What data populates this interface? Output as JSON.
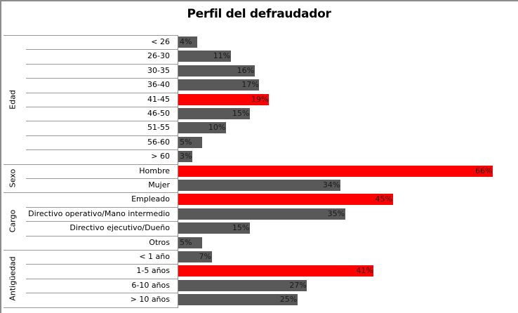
{
  "chart_data": {
    "type": "bar",
    "orientation": "horizontal",
    "title": "Perfil del defraudador",
    "xlabel": "",
    "ylabel": "",
    "grid": false,
    "legend": null,
    "colors": {
      "default": "#595959",
      "highlight": "#ff0000"
    },
    "groups": [
      {
        "name": "Edad",
        "categories": [
          "< 26",
          "26-30",
          "30-35",
          "36-40",
          "41-45",
          "46-50",
          "51-55",
          "56-60",
          "> 60"
        ],
        "values": [
          4,
          11,
          16,
          17,
          19,
          15,
          10,
          5,
          3
        ],
        "highlight": [
          false,
          false,
          false,
          false,
          true,
          false,
          false,
          false,
          false
        ]
      },
      {
        "name": "Sexo",
        "categories": [
          "Hombre",
          "Mujer"
        ],
        "values": [
          66,
          34
        ],
        "highlight": [
          true,
          false
        ]
      },
      {
        "name": "Cargo",
        "categories": [
          "Empleado",
          "Directivo operativo/Mano intermedio",
          "Directivo ejecutivo/Dueño",
          "Otros"
        ],
        "values": [
          45,
          35,
          15,
          5
        ],
        "highlight": [
          true,
          false,
          false,
          false
        ]
      },
      {
        "name": "Antigüedad",
        "categories": [
          "< 1 año",
          "1-5 años",
          "6-10 años",
          "> 10 años"
        ],
        "values": [
          7,
          41,
          27,
          25
        ],
        "highlight": [
          false,
          true,
          false,
          false
        ]
      }
    ],
    "value_format": "{v}%"
  }
}
